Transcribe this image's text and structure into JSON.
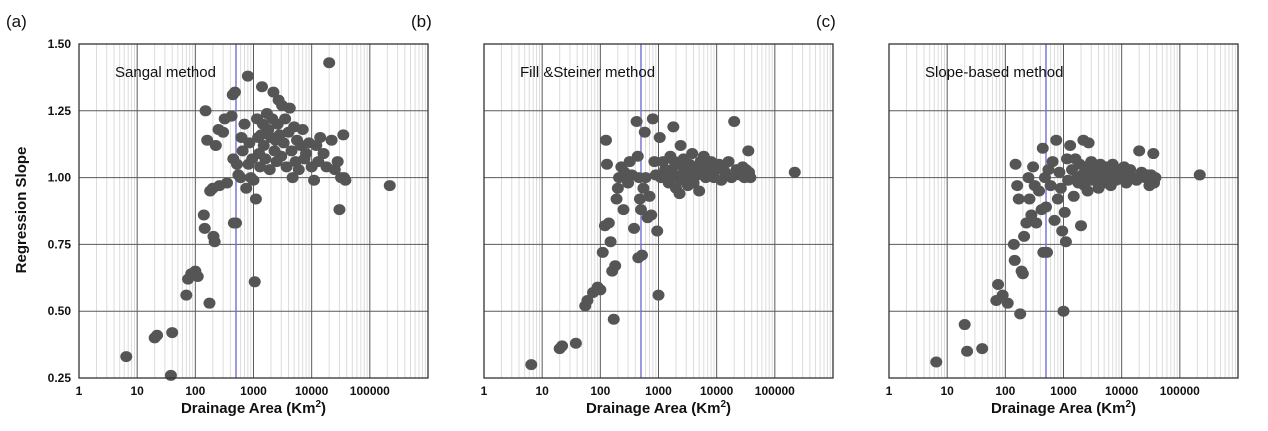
{
  "figure": {
    "y_axis_title": "Regression Slope",
    "y_tick_labels": [
      "0.25",
      "0.50",
      "0.75",
      "1.00",
      "1.25",
      "1.50"
    ],
    "x_tick_labels": [
      "1",
      "10",
      "100",
      "1000",
      "10000",
      "100000"
    ],
    "x_axis_title_main": "Drainage Area (Km",
    "x_axis_title_sup": "2",
    "x_axis_title_close": ")"
  },
  "chart_data": [
    {
      "type": "scatter",
      "panel_label": "(a)",
      "method_label": "Sangal method",
      "xlabel": "Drainage Area (Km2)",
      "ylabel": "Regression Slope",
      "x_scale": "log",
      "xlim": [
        1,
        1000000
      ],
      "ylim": [
        0.25,
        1.5
      ],
      "grid": true,
      "reference_line_x": 500,
      "marker_color": "#555555",
      "reference_line_color": "#6f6fd6",
      "points": [
        [
          6.5,
          0.33
        ],
        [
          20,
          0.4
        ],
        [
          22,
          0.41
        ],
        [
          38,
          0.26
        ],
        [
          40,
          0.42
        ],
        [
          70,
          0.56
        ],
        [
          75,
          0.62
        ],
        [
          85,
          0.64
        ],
        [
          100,
          0.65
        ],
        [
          110,
          0.63
        ],
        [
          140,
          0.86
        ],
        [
          145,
          0.81
        ],
        [
          150,
          1.25
        ],
        [
          160,
          1.14
        ],
        [
          175,
          0.53
        ],
        [
          180,
          0.95
        ],
        [
          200,
          0.96
        ],
        [
          205,
          0.78
        ],
        [
          215,
          0.76
        ],
        [
          225,
          1.12
        ],
        [
          250,
          1.18
        ],
        [
          260,
          0.97
        ],
        [
          300,
          1.17
        ],
        [
          320,
          1.22
        ],
        [
          350,
          0.98
        ],
        [
          420,
          1.23
        ],
        [
          440,
          1.31
        ],
        [
          450,
          1.07
        ],
        [
          460,
          0.83
        ],
        [
          480,
          1.32
        ],
        [
          500,
          0.83
        ],
        [
          520,
          1.05
        ],
        [
          550,
          1.01
        ],
        [
          600,
          1.0
        ],
        [
          620,
          1.15
        ],
        [
          650,
          1.1
        ],
        [
          700,
          1.2
        ],
        [
          750,
          0.96
        ],
        [
          800,
          1.38
        ],
        [
          820,
          1.05
        ],
        [
          850,
          1.13
        ],
        [
          900,
          1.0
        ],
        [
          950,
          1.07
        ],
        [
          1000,
          0.99
        ],
        [
          1050,
          0.61
        ],
        [
          1100,
          0.92
        ],
        [
          1150,
          1.22
        ],
        [
          1200,
          1.15
        ],
        [
          1250,
          1.09
        ],
        [
          1300,
          1.04
        ],
        [
          1350,
          1.16
        ],
        [
          1400,
          1.34
        ],
        [
          1450,
          1.2
        ],
        [
          1500,
          1.12
        ],
        [
          1600,
          1.07
        ],
        [
          1700,
          1.24
        ],
        [
          1800,
          1.18
        ],
        [
          1900,
          1.03
        ],
        [
          2000,
          1.15
        ],
        [
          2100,
          1.22
        ],
        [
          2200,
          1.32
        ],
        [
          2300,
          1.1
        ],
        [
          2400,
          1.14
        ],
        [
          2500,
          1.06
        ],
        [
          2600,
          1.2
        ],
        [
          2700,
          1.29
        ],
        [
          2800,
          1.16
        ],
        [
          3000,
          1.08
        ],
        [
          3100,
          1.27
        ],
        [
          3300,
          1.13
        ],
        [
          3500,
          1.22
        ],
        [
          3700,
          1.04
        ],
        [
          4000,
          1.17
        ],
        [
          4200,
          1.26
        ],
        [
          4500,
          1.1
        ],
        [
          4700,
          1.0
        ],
        [
          5000,
          1.19
        ],
        [
          5300,
          1.06
        ],
        [
          5600,
          1.14
        ],
        [
          6000,
          1.03
        ],
        [
          6500,
          1.12
        ],
        [
          7000,
          1.18
        ],
        [
          7500,
          1.07
        ],
        [
          8000,
          1.09
        ],
        [
          9000,
          1.13
        ],
        [
          10000,
          1.04
        ],
        [
          11000,
          0.99
        ],
        [
          12000,
          1.12
        ],
        [
          13000,
          1.06
        ],
        [
          14000,
          1.15
        ],
        [
          16000,
          1.09
        ],
        [
          18000,
          1.04
        ],
        [
          20000,
          1.43
        ],
        [
          22000,
          1.14
        ],
        [
          25000,
          1.03
        ],
        [
          28000,
          1.06
        ],
        [
          30000,
          0.88
        ],
        [
          32000,
          1.0
        ],
        [
          35000,
          1.16
        ],
        [
          36000,
          1.0
        ],
        [
          38000,
          0.99
        ],
        [
          220000,
          0.97
        ]
      ]
    },
    {
      "type": "scatter",
      "panel_label": "(b)",
      "method_label": "Fill &Steiner method",
      "xlabel": "Drainage Area (Km2)",
      "ylabel": "Regression Slope",
      "x_scale": "log",
      "xlim": [
        1,
        1000000
      ],
      "ylim": [
        0.25,
        1.5
      ],
      "grid": true,
      "reference_line_x": 500,
      "marker_color": "#555555",
      "reference_line_color": "#6f6fd6",
      "points": [
        [
          6.5,
          0.3
        ],
        [
          20,
          0.36
        ],
        [
          22,
          0.37
        ],
        [
          38,
          0.38
        ],
        [
          55,
          0.52
        ],
        [
          60,
          0.54
        ],
        [
          75,
          0.57
        ],
        [
          90,
          0.59
        ],
        [
          100,
          0.58
        ],
        [
          110,
          0.72
        ],
        [
          120,
          0.82
        ],
        [
          125,
          1.14
        ],
        [
          130,
          1.05
        ],
        [
          140,
          0.83
        ],
        [
          150,
          0.76
        ],
        [
          160,
          0.65
        ],
        [
          170,
          0.47
        ],
        [
          180,
          0.67
        ],
        [
          190,
          0.92
        ],
        [
          200,
          0.96
        ],
        [
          210,
          1.0
        ],
        [
          230,
          1.04
        ],
        [
          250,
          0.88
        ],
        [
          260,
          1.02
        ],
        [
          300,
          0.98
        ],
        [
          320,
          1.06
        ],
        [
          350,
          1.01
        ],
        [
          380,
          0.81
        ],
        [
          420,
          1.21
        ],
        [
          440,
          1.08
        ],
        [
          450,
          0.7
        ],
        [
          460,
          1.0
        ],
        [
          480,
          0.92
        ],
        [
          500,
          0.88
        ],
        [
          520,
          0.71
        ],
        [
          550,
          0.96
        ],
        [
          580,
          1.17
        ],
        [
          600,
          1.0
        ],
        [
          650,
          0.85
        ],
        [
          700,
          0.93
        ],
        [
          750,
          0.86
        ],
        [
          800,
          1.22
        ],
        [
          850,
          1.06
        ],
        [
          900,
          1.01
        ],
        [
          950,
          0.8
        ],
        [
          1000,
          0.56
        ],
        [
          1050,
          1.15
        ],
        [
          1100,
          1.0
        ],
        [
          1200,
          1.06
        ],
        [
          1300,
          1.03
        ],
        [
          1400,
          1.01
        ],
        [
          1500,
          0.98
        ],
        [
          1600,
          1.08
        ],
        [
          1700,
          1.03
        ],
        [
          1800,
          1.19
        ],
        [
          1900,
          1.06
        ],
        [
          2000,
          0.96
        ],
        [
          2100,
          1.0
        ],
        [
          2200,
          1.05
        ],
        [
          2300,
          0.94
        ],
        [
          2400,
          1.12
        ],
        [
          2500,
          1.01
        ],
        [
          2600,
          0.99
        ],
        [
          2700,
          1.07
        ],
        [
          2800,
          1.03
        ],
        [
          3000,
          1.02
        ],
        [
          3200,
          0.97
        ],
        [
          3400,
          1.05
        ],
        [
          3600,
          1.0
        ],
        [
          3800,
          1.09
        ],
        [
          4000,
          0.98
        ],
        [
          4300,
          1.03
        ],
        [
          4600,
          1.01
        ],
        [
          5000,
          0.95
        ],
        [
          5300,
          1.06
        ],
        [
          5600,
          1.02
        ],
        [
          6000,
          1.08
        ],
        [
          6500,
          1.0
        ],
        [
          7000,
          1.04
        ],
        [
          7500,
          1.02
        ],
        [
          8000,
          1.06
        ],
        [
          9000,
          1.0
        ],
        [
          10000,
          1.03
        ],
        [
          11000,
          1.05
        ],
        [
          12000,
          0.99
        ],
        [
          13000,
          1.04
        ],
        [
          14000,
          1.02
        ],
        [
          16000,
          1.06
        ],
        [
          18000,
          1.0
        ],
        [
          20000,
          1.21
        ],
        [
          22000,
          1.03
        ],
        [
          25000,
          1.01
        ],
        [
          28000,
          1.04
        ],
        [
          30000,
          1.0
        ],
        [
          32000,
          1.03
        ],
        [
          35000,
          1.1
        ],
        [
          36000,
          1.02
        ],
        [
          38000,
          1.0
        ],
        [
          220000,
          1.02
        ]
      ]
    },
    {
      "type": "scatter",
      "panel_label": "(c)",
      "method_label": "Slope-based method",
      "xlabel": "Drainage Area (Km2)",
      "ylabel": "Regression Slope",
      "x_scale": "log",
      "xlim": [
        1,
        1000000
      ],
      "ylim": [
        0.25,
        1.5
      ],
      "grid": true,
      "reference_line_x": 500,
      "marker_color": "#555555",
      "reference_line_color": "#6f6fd6",
      "points": [
        [
          6.5,
          0.31
        ],
        [
          20,
          0.45
        ],
        [
          22,
          0.35
        ],
        [
          40,
          0.36
        ],
        [
          70,
          0.54
        ],
        [
          75,
          0.6
        ],
        [
          90,
          0.56
        ],
        [
          110,
          0.53
        ],
        [
          140,
          0.75
        ],
        [
          145,
          0.69
        ],
        [
          150,
          1.05
        ],
        [
          160,
          0.97
        ],
        [
          170,
          0.92
        ],
        [
          180,
          0.49
        ],
        [
          190,
          0.65
        ],
        [
          200,
          0.64
        ],
        [
          210,
          0.78
        ],
        [
          230,
          0.83
        ],
        [
          250,
          1.0
        ],
        [
          260,
          0.92
        ],
        [
          280,
          0.86
        ],
        [
          300,
          1.04
        ],
        [
          320,
          0.97
        ],
        [
          340,
          0.83
        ],
        [
          380,
          0.95
        ],
        [
          420,
          0.88
        ],
        [
          440,
          1.11
        ],
        [
          450,
          0.72
        ],
        [
          480,
          1.0
        ],
        [
          500,
          0.89
        ],
        [
          520,
          0.72
        ],
        [
          550,
          1.03
        ],
        [
          600,
          0.97
        ],
        [
          650,
          1.06
        ],
        [
          700,
          0.84
        ],
        [
          750,
          1.14
        ],
        [
          800,
          0.92
        ],
        [
          850,
          1.02
        ],
        [
          900,
          0.96
        ],
        [
          950,
          0.8
        ],
        [
          1000,
          0.5
        ],
        [
          1050,
          0.87
        ],
        [
          1100,
          0.76
        ],
        [
          1150,
          1.07
        ],
        [
          1200,
          0.99
        ],
        [
          1300,
          1.12
        ],
        [
          1400,
          1.03
        ],
        [
          1500,
          0.93
        ],
        [
          1600,
          1.07
        ],
        [
          1700,
          1.0
        ],
        [
          1800,
          0.98
        ],
        [
          1900,
          1.05
        ],
        [
          2000,
          0.82
        ],
        [
          2100,
          1.01
        ],
        [
          2200,
          1.14
        ],
        [
          2300,
          0.97
        ],
        [
          2400,
          1.04
        ],
        [
          2500,
          1.0
        ],
        [
          2600,
          0.95
        ],
        [
          2700,
          1.13
        ],
        [
          2800,
          1.02
        ],
        [
          3000,
          1.06
        ],
        [
          3200,
          0.99
        ],
        [
          3500,
          1.03
        ],
        [
          3800,
          1.0
        ],
        [
          4000,
          0.96
        ],
        [
          4300,
          1.05
        ],
        [
          4600,
          1.01
        ],
        [
          5000,
          0.98
        ],
        [
          5300,
          1.04
        ],
        [
          5600,
          1.0
        ],
        [
          6000,
          1.02
        ],
        [
          6500,
          0.97
        ],
        [
          7000,
          1.05
        ],
        [
          7500,
          1.0
        ],
        [
          8000,
          0.99
        ],
        [
          9000,
          1.03
        ],
        [
          10000,
          1.0
        ],
        [
          11000,
          1.04
        ],
        [
          12000,
          0.98
        ],
        [
          13000,
          1.01
        ],
        [
          14000,
          1.03
        ],
        [
          16000,
          1.0
        ],
        [
          18000,
          0.99
        ],
        [
          20000,
          1.1
        ],
        [
          22000,
          1.02
        ],
        [
          25000,
          1.0
        ],
        [
          28000,
          1.01
        ],
        [
          30000,
          0.97
        ],
        [
          32000,
          1.01
        ],
        [
          35000,
          1.09
        ],
        [
          36000,
          0.98
        ],
        [
          38000,
          1.0
        ],
        [
          220000,
          1.01
        ]
      ]
    }
  ]
}
